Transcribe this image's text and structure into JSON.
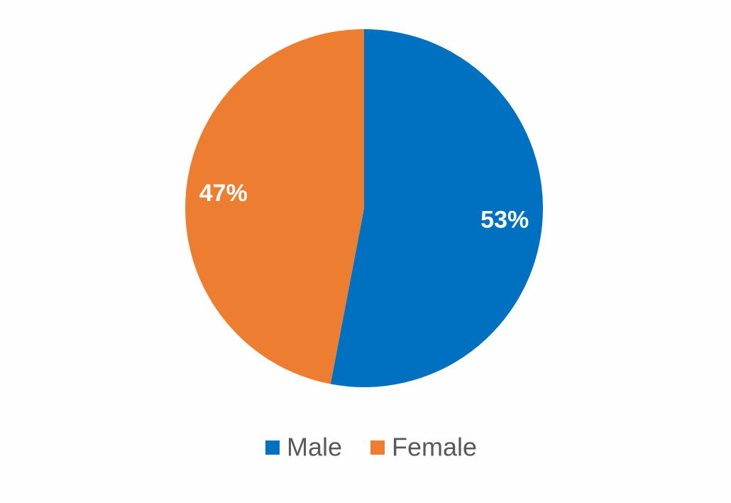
{
  "chart_data": {
    "type": "pie",
    "categories": [
      "Male",
      "Female"
    ],
    "values": [
      53,
      47
    ],
    "value_labels": [
      "53%",
      "47%"
    ],
    "colors": [
      "#0070c0",
      "#ed7d31"
    ],
    "legend": "bottom"
  }
}
